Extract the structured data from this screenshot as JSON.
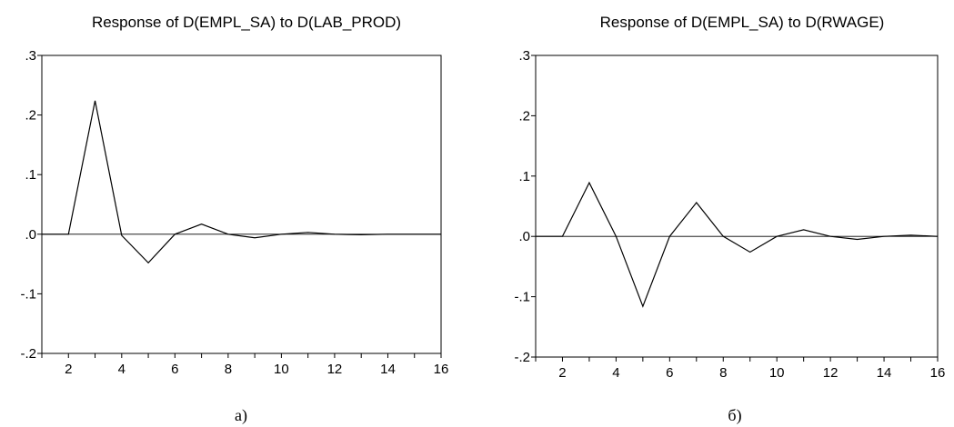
{
  "chart_data": [
    {
      "type": "line",
      "title": "Response of D(EMPL_SA) to D(LAB_PROD)",
      "caption": "а)",
      "xlabel": "",
      "ylabel": "",
      "xlim": [
        1,
        16
      ],
      "ylim": [
        -0.2,
        0.3
      ],
      "x_tick_labels": [
        "2",
        "4",
        "6",
        "8",
        "10",
        "12",
        "14",
        "16"
      ],
      "y_tick_labels": [
        ".3",
        ".2",
        ".1",
        ".0",
        "-.1",
        "-.2"
      ],
      "x": [
        1,
        2,
        3,
        4,
        5,
        6,
        7,
        8,
        9,
        10,
        11,
        12,
        13,
        14,
        15,
        16
      ],
      "values": [
        0.0,
        0.0,
        0.224,
        -0.002,
        -0.048,
        0.0,
        0.017,
        0.0,
        -0.006,
        0.0,
        0.003,
        0.0,
        -0.001,
        0.0,
        0.0,
        0.0
      ],
      "zero_line": true,
      "grid": false
    },
    {
      "type": "line",
      "title": "Response of D(EMPL_SA) to D(RWAGE)",
      "caption": "б)",
      "xlabel": "",
      "ylabel": "",
      "xlim": [
        1,
        16
      ],
      "ylim": [
        -0.2,
        0.3
      ],
      "x_tick_labels": [
        "2",
        "4",
        "6",
        "8",
        "10",
        "12",
        "14",
        "16"
      ],
      "y_tick_labels": [
        ".3",
        ".2",
        ".1",
        ".0",
        "-.1",
        "-.2"
      ],
      "x": [
        1,
        2,
        3,
        4,
        5,
        6,
        7,
        8,
        9,
        10,
        11,
        12,
        13,
        14,
        15,
        16
      ],
      "values": [
        0.0,
        0.0,
        0.089,
        0.0,
        -0.116,
        0.0,
        0.056,
        0.0,
        -0.026,
        0.0,
        0.011,
        0.0,
        -0.005,
        0.0,
        0.002,
        0.0
      ],
      "zero_line": true,
      "grid": false
    }
  ]
}
